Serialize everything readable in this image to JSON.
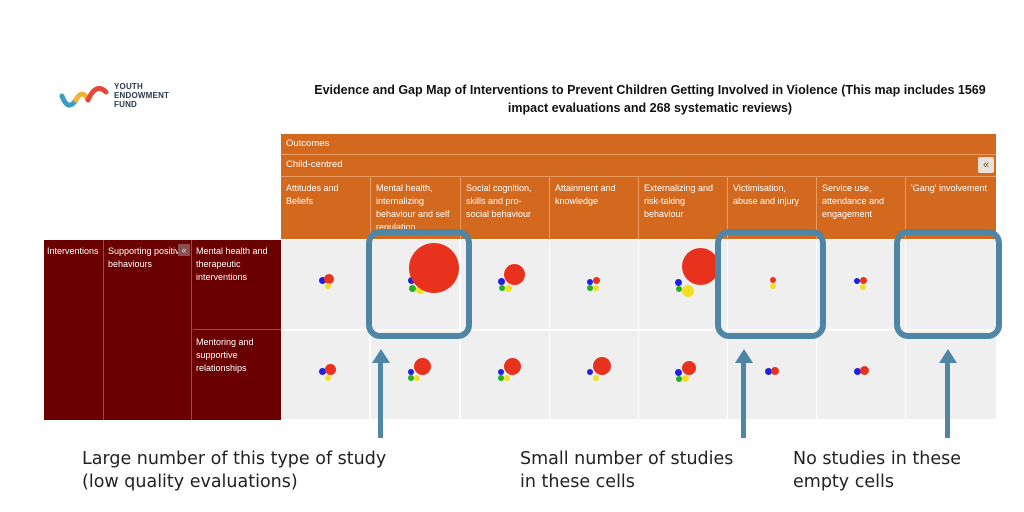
{
  "logo": {
    "line1": "YOUTH",
    "line2": "ENDOWMENT",
    "line3": "FUND"
  },
  "title": "Evidence and Gap Map of Interventions to Prevent Children Getting Involved in Violence (This map includes 1569 impact evaluations and 268 systematic reviews)",
  "outcomes_label": "Outcomes",
  "child_centred_label": "Child-centred",
  "collapse_icon": "«",
  "columns": [
    "Attitudes and Beliefs",
    "Mental health, internalizing behaviour and self regulation",
    "Social cognition, skills and pro-social behaviour",
    "Attainment and knowledge",
    "Externalizing and risk-taking behaviour",
    "Victimisation, abuse and injury",
    "Service use, attendance and engagement",
    "'Gang' involvement"
  ],
  "interventions_label": "Interventions",
  "category_label": "Supporting positive behaviours",
  "rows": [
    "Mental health and therapeutic interventions",
    "Mentoring and supportive relationships"
  ],
  "captions": {
    "large": "Large number of this type of study (low quality evaluations)",
    "small": "Small number of studies in these cells",
    "none": "No studies in these empty cells"
  },
  "colors": {
    "header": "#d2691e",
    "maroon": "#6b0000",
    "callout": "#4f86a6"
  }
}
